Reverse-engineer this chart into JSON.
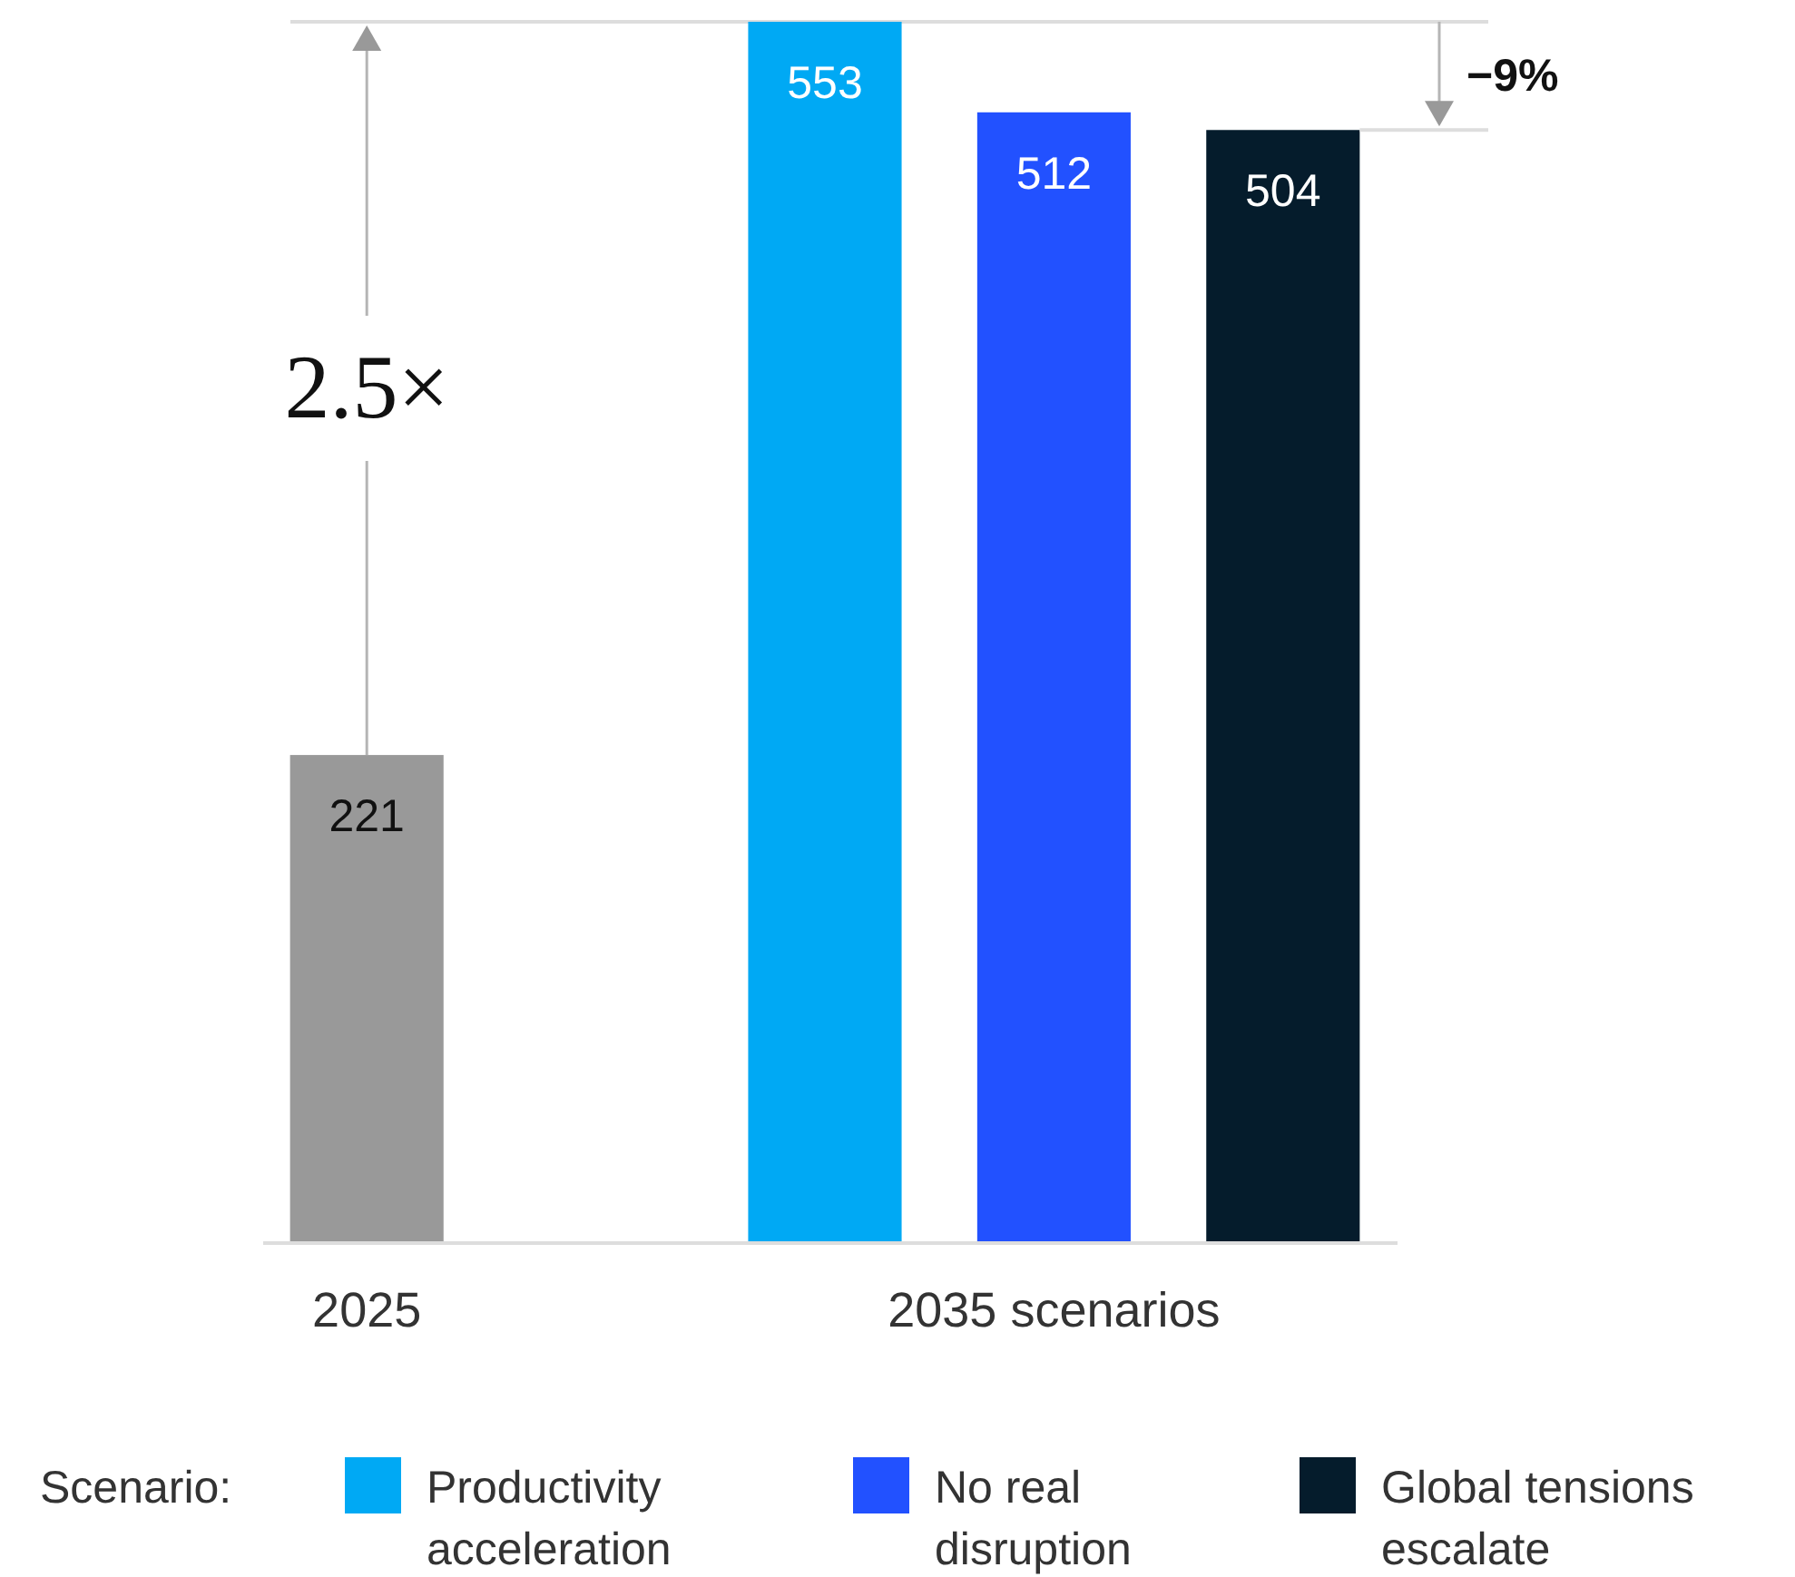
{
  "chart_data": {
    "type": "bar",
    "stacked": true,
    "data_labels": true,
    "legend": "bottom",
    "legend_title": "Scenario:",
    "categories": [
      "2025",
      null,
      null,
      "2035 scenarios",
      null
    ],
    "series": [
      {
        "color": "#999999",
        "values": [
          221,
          null,
          null,
          null,
          null
        ]
      },
      {
        "name": "Productivity acceleration",
        "color": "#00a9f4",
        "values": [
          null,
          null,
          553,
          null,
          null
        ]
      },
      {
        "name": "No real disruption",
        "color": "#2251ff",
        "values": [
          null,
          null,
          null,
          512,
          null
        ]
      },
      {
        "name": "Global tensions escalate",
        "color": "#051c2c",
        "values": [
          null,
          null,
          null,
          null,
          504
        ]
      }
    ],
    "annotations": [
      "2.5×",
      "−9%"
    ]
  }
}
